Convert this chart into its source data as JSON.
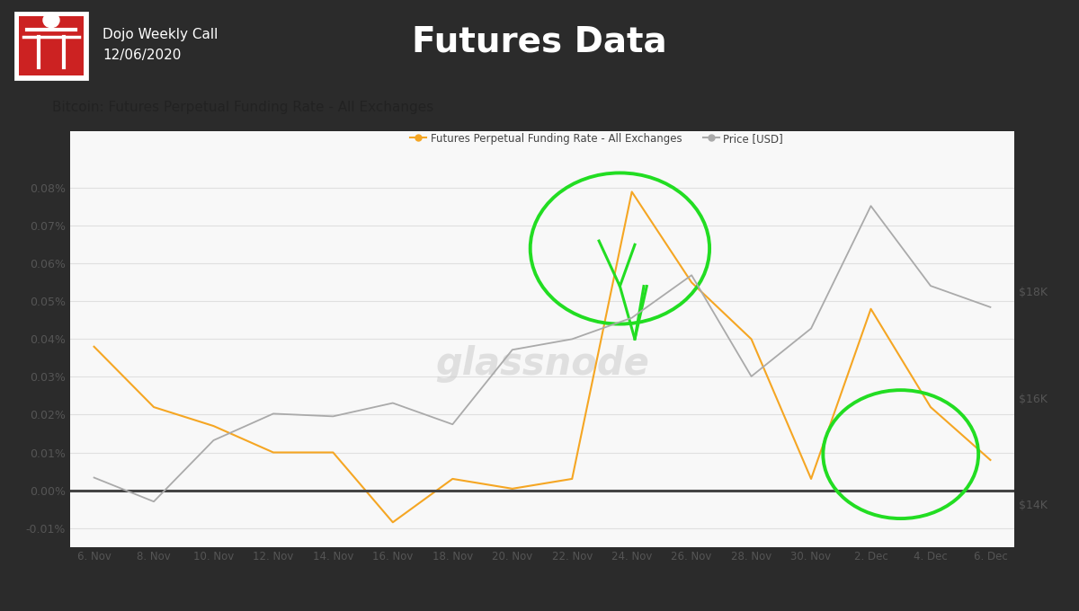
{
  "title": "Futures Data",
  "subtitle_line1": "Dojo Weekly Call",
  "subtitle_line2": "12/06/2020",
  "chart_title": "Bitcoin: Futures Perpetual Funding Rate - All Exchanges",
  "background_dark": "#2b2b2b",
  "background_chart": "#ffffff",
  "funding_color": "#f5a623",
  "price_color": "#aaaaaa",
  "watermark": "glassnode",
  "x_labels": [
    "6. Nov",
    "8. Nov",
    "10. Nov",
    "12. Nov",
    "14. Nov",
    "16. Nov",
    "18. Nov",
    "20. Nov",
    "22. Nov",
    "24. Nov",
    "26. Nov",
    "28. Nov",
    "30. Nov",
    "2. Dec",
    "4. Dec",
    "6. Dec"
  ],
  "funding_vals": [
    0.00038,
    0.00022,
    0.00017,
    0.0001,
    0.0001,
    -8.5e-05,
    3e-05,
    4e-06,
    3e-05,
    0.00079,
    0.00055,
    0.0004,
    3e-05,
    0.00048,
    0.00022,
    8e-05
  ],
  "price_pts": [
    14500,
    14050,
    15200,
    15700,
    15650,
    15900,
    15500,
    16900,
    17100,
    17500,
    18300,
    16400,
    17300,
    19600,
    18100,
    17700
  ],
  "yticks": [
    -0.0001,
    0.0,
    0.0001,
    0.0002,
    0.0003,
    0.0004,
    0.0005,
    0.0006,
    0.0007,
    0.0008
  ],
  "ytick_labels": [
    "-0.01%",
    "0.00%",
    "0.01%",
    "0.02%",
    "0.03%",
    "0.04%",
    "0.05%",
    "0.06%",
    "0.07%",
    "0.08%"
  ],
  "ylim": [
    -0.00015,
    0.00095
  ],
  "price_ylim": [
    13200,
    21000
  ],
  "price_ticks": [
    14000,
    16000,
    18000
  ],
  "price_tick_labels": [
    "$14K",
    "$16K",
    "$18K"
  ],
  "green_color": "#22dd22",
  "legend_funding": "Futures Perpetual Funding Rate - All Exchanges",
  "legend_price": "Price [USD]"
}
